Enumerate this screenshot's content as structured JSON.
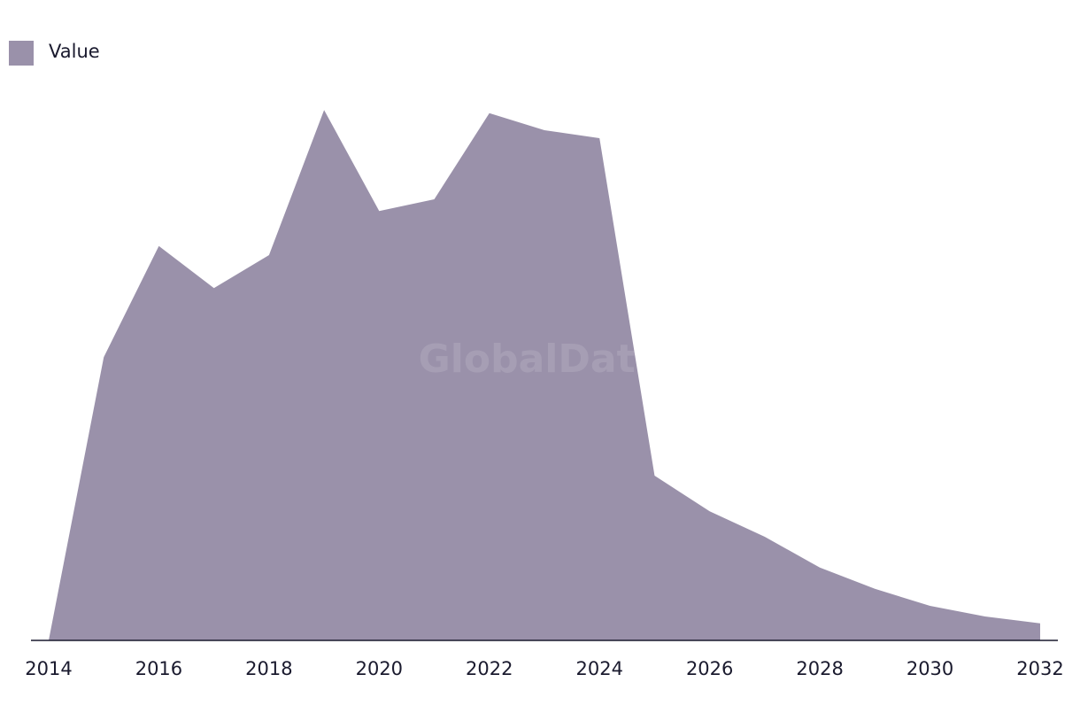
{
  "chart_data": {
    "type": "area",
    "watermark": "GlobalData",
    "x": [
      2014,
      2015,
      2016,
      2017,
      2018,
      2019,
      2020,
      2021,
      2022,
      2023,
      2024,
      2025,
      2026,
      2027,
      2028,
      2029,
      2030,
      2031,
      2032
    ],
    "series": [
      {
        "name": "Value",
        "color": "#9a91aa",
        "values": [
          0,
          53.3,
          74.2,
          66.3,
          72.5,
          99.8,
          80.8,
          83,
          99.2,
          96,
          94.5,
          31,
          24.3,
          19.5,
          13.7,
          9.7,
          6.5,
          4.5,
          3.2
        ]
      }
    ],
    "xlim": [
      2014,
      2032
    ],
    "xticks": [
      2014,
      2016,
      2018,
      2020,
      2022,
      2024,
      2026,
      2028,
      2030,
      2032
    ],
    "ylim": [
      0,
      100
    ],
    "legend": "top-left"
  }
}
